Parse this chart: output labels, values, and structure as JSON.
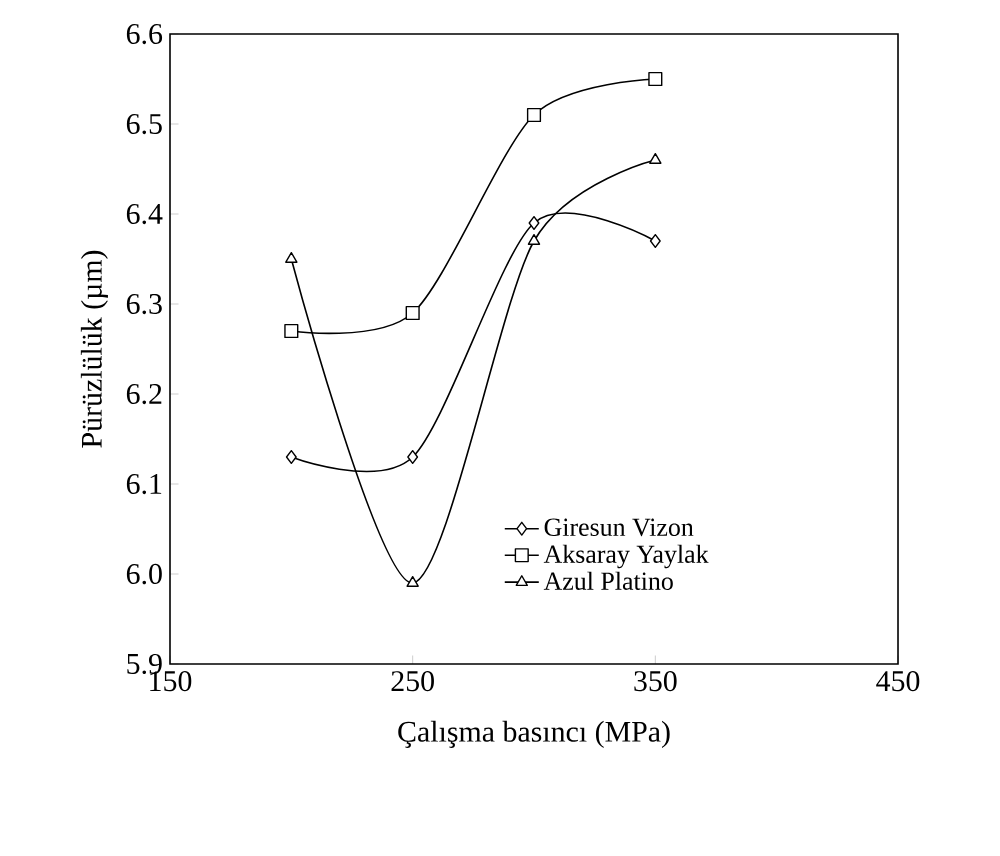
{
  "chart_data": {
    "type": "line",
    "xlabel": "Çalışma basıncı (MPa)",
    "ylabel": "Pürüzlülük (µm)",
    "x": [
      200,
      250,
      300,
      350
    ],
    "series": [
      {
        "name": "Giresun Vizon",
        "color": "#000000",
        "marker": "diamond",
        "values": [
          6.13,
          6.13,
          6.39,
          6.37
        ]
      },
      {
        "name": "Aksaray Yaylak",
        "color": "#000000",
        "marker": "square",
        "values": [
          6.27,
          6.29,
          6.51,
          6.55
        ]
      },
      {
        "name": "Azul Platino",
        "color": "#000000",
        "marker": "triangle",
        "values": [
          6.35,
          5.99,
          6.37,
          6.46
        ]
      }
    ],
    "xlim": [
      150,
      450
    ],
    "xticks": [
      150,
      250,
      350,
      450
    ],
    "ylim": [
      5.9,
      6.6
    ],
    "yticks": [
      {
        "value": 5.9,
        "label": "5.9"
      },
      {
        "value": 6.0,
        "label": "6.0"
      },
      {
        "value": 6.1,
        "label": "6.1"
      },
      {
        "value": 6.2,
        "label": "6.2"
      },
      {
        "value": 6.3,
        "label": "6.3"
      },
      {
        "value": 6.4,
        "label": "6.4"
      },
      {
        "value": 6.5,
        "label": "6.5"
      },
      {
        "value": 6.6,
        "label": "6.6"
      }
    ],
    "grid": false,
    "legend": "bottom right",
    "line_style": "solid"
  }
}
